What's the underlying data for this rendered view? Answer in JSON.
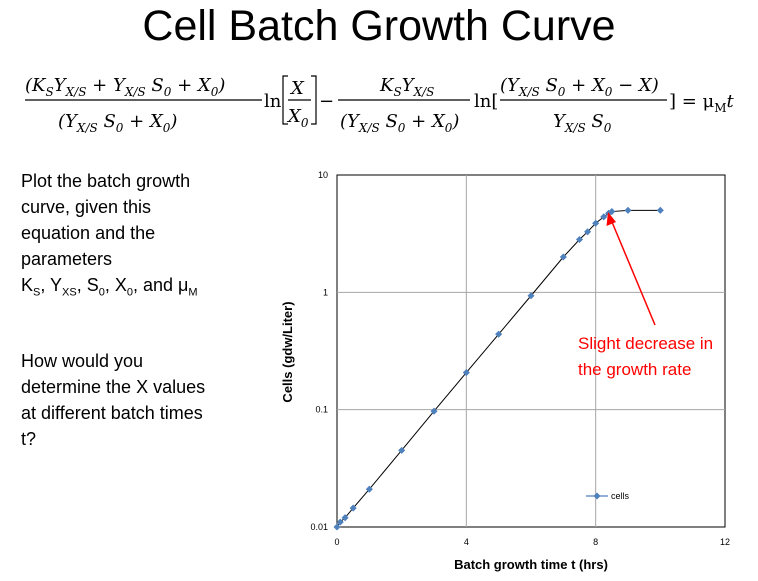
{
  "page": {
    "title": "Cell Batch Growth Curve",
    "equation": {
      "term1_num": "(K_S Y_{X/S} + Y_{X/S} S_0 + X_0)",
      "term1_den": "(Y_{X/S} S_0 + X_0)",
      "ln": "ln",
      "x_over_x0_num": "X",
      "x_over_x0_den": "X_0",
      "minus": "−",
      "term2_num": "K_S Y_{X/S}",
      "term2_den": "(Y_{X/S} S_0 + X_0)",
      "ln_bracket": "ln[",
      "term3_num": "(Y_{X/S} S_0 + X_0 − X)",
      "term3_den": "Y_{X/S} S_0",
      "rhs": "] = μ_M t"
    },
    "question1": {
      "lines": [
        "Plot the batch growth",
        "curve, given this",
        "equation and the",
        "parameters"
      ],
      "params": "K_S, Y_XS, S_0, X_0, and μ_M"
    },
    "question2": {
      "lines": [
        "How would you",
        "determine the X values",
        "at different batch times",
        "t?"
      ]
    },
    "annotation": {
      "line1": "Slight decrease in",
      "line2": "the growth rate",
      "color": "#ff0000"
    }
  },
  "chart_data": {
    "type": "line",
    "xlabel": "Batch growth time t (hrs)",
    "ylabel": "Cells (gdw/Liter)",
    "xlim": [
      0,
      12
    ],
    "ylim": [
      0.01,
      10
    ],
    "yscale": "log",
    "xticks": [
      "0",
      "4",
      "8",
      "12"
    ],
    "yticks": [
      "0.01",
      "0.1",
      "1",
      "10"
    ],
    "grid": true,
    "legend_position": "bottom-right",
    "series": [
      {
        "name": "cells",
        "color": "#4f81bd",
        "x": [
          0,
          0.1,
          0.25,
          0.5,
          1,
          2,
          3,
          4,
          5,
          6,
          7,
          7.5,
          7.75,
          8,
          8.25,
          8.4,
          8.5,
          9,
          10
        ],
        "y": [
          0.01,
          0.011,
          0.012,
          0.0145,
          0.021,
          0.045,
          0.097,
          0.207,
          0.44,
          0.935,
          2.0,
          2.82,
          3.28,
          3.88,
          4.4,
          4.72,
          4.88,
          5.0,
          5.0
        ]
      }
    ]
  }
}
